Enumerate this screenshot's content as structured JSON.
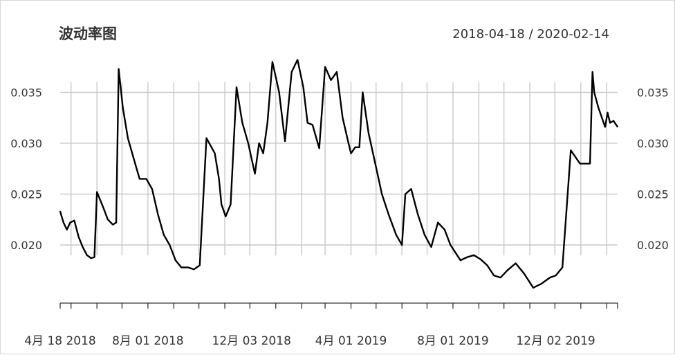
{
  "chart_data": {
    "type": "line",
    "title": "波动率图",
    "date_range": "2018-04-18 / 2020-02-14",
    "ylim": [
      0.015,
      0.039
    ],
    "y_ticks": [
      0.02,
      0.025,
      0.03,
      0.035
    ],
    "y_tick_labels": [
      "0.020",
      "0.025",
      "0.030",
      "0.035"
    ],
    "x_tick_labels": [
      "4月 18 2018",
      "8月 01 2018",
      "12月 03 2018",
      "4月 01 2019",
      "8月 01 2019",
      "12月 02 2019"
    ],
    "grid": true,
    "series": [
      {
        "color": "#000000",
        "x": [
          "2018-04-18",
          "2018-04-22",
          "2018-04-26",
          "2018-04-30",
          "2018-05-05",
          "2018-05-10",
          "2018-05-15",
          "2018-05-20",
          "2018-05-25",
          "2018-05-29",
          "2018-06-01",
          "2018-06-08",
          "2018-06-14",
          "2018-06-20",
          "2018-06-24",
          "2018-06-27",
          "2018-07-02",
          "2018-07-08",
          "2018-07-15",
          "2018-07-22",
          "2018-07-30",
          "2018-08-06",
          "2018-08-13",
          "2018-08-20",
          "2018-08-27",
          "2018-09-03",
          "2018-09-10",
          "2018-09-18",
          "2018-09-25",
          "2018-10-02",
          "2018-10-10",
          "2018-10-20",
          "2018-10-25",
          "2018-10-28",
          "2018-11-02",
          "2018-11-08",
          "2018-11-15",
          "2018-11-22",
          "2018-11-29",
          "2018-12-03",
          "2018-12-07",
          "2018-12-12",
          "2018-12-17",
          "2018-12-22",
          "2018-12-28",
          "2019-01-05",
          "2019-01-12",
          "2019-01-20",
          "2019-01-27",
          "2019-02-03",
          "2019-02-08",
          "2019-02-14",
          "2019-02-22",
          "2019-03-01",
          "2019-03-08",
          "2019-03-15",
          "2019-03-22",
          "2019-03-29",
          "2019-04-01",
          "2019-04-06",
          "2019-04-11",
          "2019-04-15",
          "2019-04-22",
          "2019-04-30",
          "2019-05-08",
          "2019-05-16",
          "2019-05-25",
          "2019-06-01",
          "2019-06-05",
          "2019-06-12",
          "2019-06-20",
          "2019-06-28",
          "2019-07-06",
          "2019-07-14",
          "2019-07-22",
          "2019-07-29",
          "2019-08-02",
          "2019-08-10",
          "2019-08-18",
          "2019-08-26",
          "2019-09-03",
          "2019-09-11",
          "2019-09-19",
          "2019-09-27",
          "2019-10-05",
          "2019-10-15",
          "2019-10-25",
          "2019-11-05",
          "2019-11-15",
          "2019-11-25",
          "2019-12-02",
          "2019-12-10",
          "2019-12-20",
          "2019-12-31",
          "2020-01-05",
          "2020-01-12",
          "2020-01-15",
          "2020-01-17",
          "2020-01-22",
          "2020-01-30",
          "2020-02-02",
          "2020-02-05",
          "2020-02-09",
          "2020-02-14"
        ],
        "y": [
          0.0233,
          0.0222,
          0.0215,
          0.0222,
          0.0224,
          0.0208,
          0.0198,
          0.019,
          0.0187,
          0.0188,
          0.0252,
          0.0238,
          0.0225,
          0.022,
          0.0222,
          0.0373,
          0.0335,
          0.0305,
          0.0285,
          0.0265,
          0.0265,
          0.0255,
          0.023,
          0.021,
          0.02,
          0.0185,
          0.0178,
          0.0178,
          0.0176,
          0.018,
          0.0305,
          0.029,
          0.0265,
          0.024,
          0.0228,
          0.024,
          0.0355,
          0.032,
          0.03,
          0.0285,
          0.027,
          0.03,
          0.029,
          0.032,
          0.038,
          0.035,
          0.0302,
          0.037,
          0.0382,
          0.0355,
          0.032,
          0.0318,
          0.0295,
          0.0375,
          0.0362,
          0.037,
          0.0325,
          0.03,
          0.029,
          0.0296,
          0.0296,
          0.035,
          0.031,
          0.028,
          0.025,
          0.023,
          0.021,
          0.02,
          0.025,
          0.0255,
          0.023,
          0.021,
          0.0198,
          0.0222,
          0.0215,
          0.02,
          0.0195,
          0.0185,
          0.0188,
          0.019,
          0.0186,
          0.018,
          0.017,
          0.0168,
          0.0175,
          0.0182,
          0.0172,
          0.0158,
          0.0162,
          0.0168,
          0.017,
          0.0178,
          0.0293,
          0.028,
          0.028,
          0.028,
          0.037,
          0.035,
          0.0335,
          0.0316,
          0.033,
          0.032,
          0.0322,
          0.0316
        ]
      }
    ]
  }
}
